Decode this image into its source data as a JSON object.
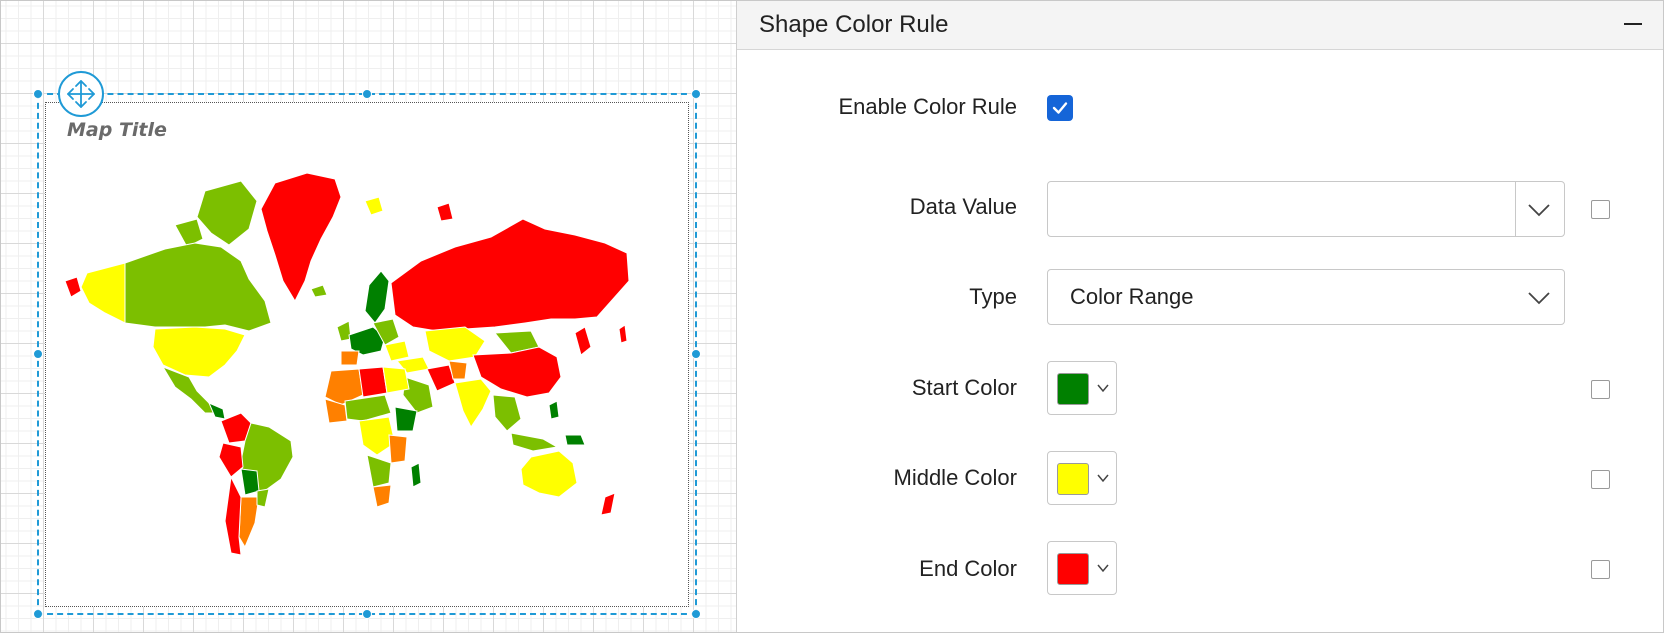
{
  "designer": {
    "map_title": "Map Title"
  },
  "panel": {
    "title": "Shape Color Rule",
    "enable_color_rule": {
      "label": "Enable Color Rule",
      "checked": true
    },
    "data_value": {
      "label": "Data Value",
      "value": ""
    },
    "type": {
      "label": "Type",
      "value": "Color Range"
    },
    "start_color": {
      "label": "Start Color",
      "color": "#008000"
    },
    "middle_color": {
      "label": "Middle Color",
      "color": "#ffff00"
    },
    "end_color": {
      "label": "End Color",
      "color": "#ff0000"
    }
  },
  "colors": {
    "accent": "#1f9ad6",
    "checkbox": "#1565d8",
    "map_green": "#008000",
    "map_light_green": "#7cbf00",
    "map_yellow": "#ffff00",
    "map_orange": "#ff8000",
    "map_red": "#ff0000"
  },
  "icons": {
    "move": "move-arrows-icon",
    "collapse": "minus-icon",
    "dropdown": "chevron-down-icon",
    "check": "checkmark-icon"
  }
}
